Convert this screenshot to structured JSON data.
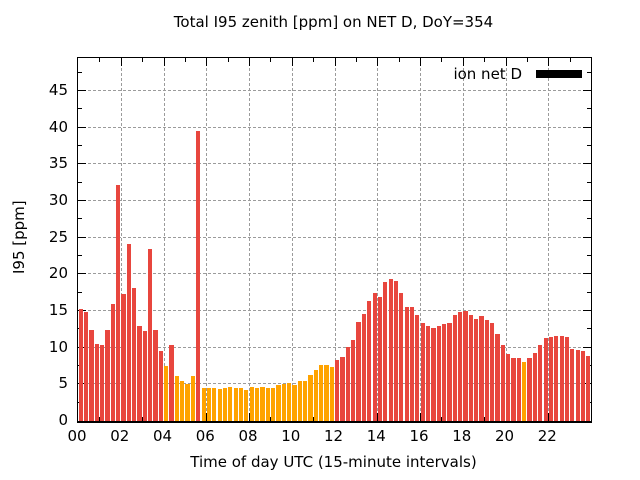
{
  "title": "Total I95 zenith [ppm] on NET D, DoY=354",
  "axes": {
    "ylabel": "I95 [ppm]",
    "xlabel": "Time of day UTC (15-minute intervals)"
  },
  "legend": {
    "label": "ion net D",
    "swatch_color": "#000000"
  },
  "colors": {
    "red_bar": "#e8463e",
    "orange_bar": "#ffa300",
    "grid": "#9b9b9b",
    "axis": "#000000",
    "background": "#ffffff"
  },
  "chart_data": {
    "type": "bar",
    "title": "Total I95 zenith [ppm] on NET D, DoY=354",
    "xlabel": "Time of day UTC (15-minute intervals)",
    "ylabel": "I95 [ppm]",
    "x_start": "00:00",
    "x_step_minutes": 15,
    "x_hours_span": 24,
    "ylim": [
      0,
      49.5
    ],
    "yticks": [
      0,
      5,
      10,
      15,
      20,
      25,
      30,
      35,
      40,
      45
    ],
    "xtick_hours": [
      0,
      2,
      4,
      6,
      8,
      10,
      12,
      14,
      16,
      18,
      20,
      22
    ],
    "xtick_labels": [
      "00",
      "02",
      "04",
      "06",
      "08",
      "10",
      "12",
      "14",
      "16",
      "18",
      "20",
      "22"
    ],
    "grid": true,
    "legend_position": "top-right",
    "series_name": "ion net D",
    "values": [
      15.3,
      14.8,
      12.4,
      10.5,
      10.3,
      12.4,
      15.9,
      32.2,
      17.3,
      24.2,
      18.1,
      13.0,
      12.3,
      23.5,
      12.4,
      9.5,
      7.5,
      10.3,
      6.2,
      5.5,
      5.1,
      6.1,
      39.5,
      4.5,
      4.5,
      4.5,
      4.3,
      4.5,
      4.7,
      4.5,
      4.5,
      4.2,
      4.7,
      4.5,
      4.6,
      4.5,
      4.5,
      4.9,
      5.0,
      5.2,
      4.9,
      5.5,
      5.5,
      6.3,
      7.0,
      7.6,
      7.6,
      7.4,
      8.3,
      8.7,
      10.1,
      11.1,
      13.5,
      14.6,
      16.4,
      17.4,
      16.9,
      19.0,
      19.3,
      19.1,
      17.4,
      15.5,
      15.5,
      14.5,
      13.4,
      13.0,
      12.7,
      13.0,
      13.2,
      13.4,
      14.5,
      14.9,
      15.0,
      14.5,
      13.9,
      14.3,
      13.8,
      13.4,
      11.9,
      10.3,
      9.1,
      8.6,
      8.6,
      8.1,
      8.6,
      9.3,
      10.4,
      11.3,
      11.5,
      11.6,
      11.6,
      11.5,
      9.8,
      9.7,
      9.5,
      8.9
    ],
    "bar_colors": "rrrrrrrrrrrrrrrroroooorooooooooooooooooooooooooorrrrrrrrrrrrrrrrrrrrrrrrrrrrrrrrrrrorrrrrrrrrrrr",
    "bar_color_map": {
      "r": "#e8463e",
      "o": "#ffa300"
    }
  }
}
